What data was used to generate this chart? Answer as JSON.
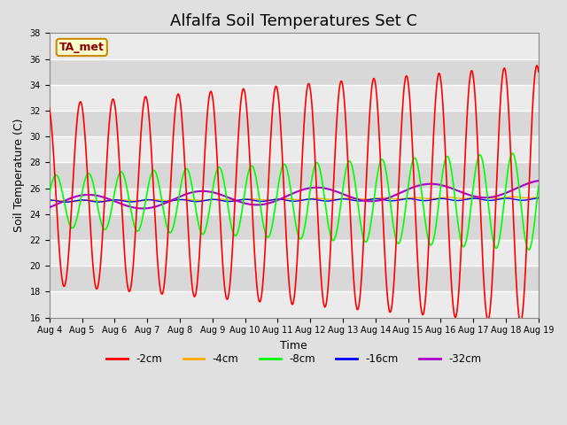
{
  "title": "Alfalfa Soil Temperatures Set C",
  "xlabel": "Time",
  "ylabel": "Soil Temperature (C)",
  "ylim": [
    16,
    38
  ],
  "legend_label": "TA_met",
  "line_colors": {
    "-2cm": "#ff0000",
    "-4cm": "#ffaa00",
    "-8cm": "#00ff00",
    "-16cm": "#0000ff",
    "-32cm": "#aa00cc"
  },
  "legend_entries": [
    "-2cm",
    "-4cm",
    "-8cm",
    "-16cm",
    "-32cm"
  ],
  "background_color": "#e0e0e0",
  "stripe_color_light": "#ebebeb",
  "stripe_color_dark": "#d8d8d8",
  "title_fontsize": 13,
  "axis_label_fontsize": 9,
  "tick_fontsize": 7,
  "x_tick_labels": [
    "Aug 4",
    "Aug 5",
    "Aug 6",
    "Aug 7",
    "Aug 8",
    "Aug 9",
    "Aug 10",
    "Aug 11",
    "Aug 12",
    "Aug 13",
    "Aug 14",
    "Aug 15",
    "Aug 16",
    "Aug 17",
    "Aug 18",
    "Aug 19"
  ]
}
